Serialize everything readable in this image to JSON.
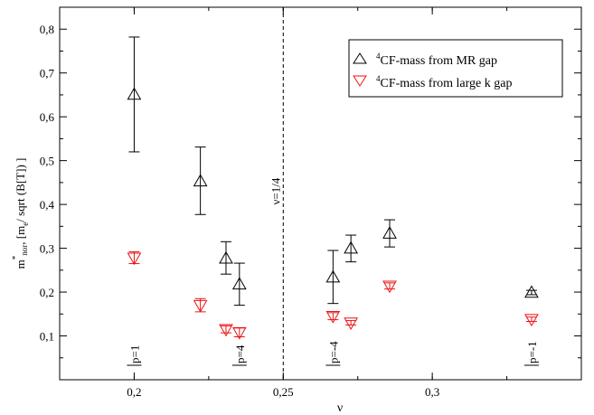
{
  "chart_data": {
    "type": "scatter",
    "title": "",
    "xlabel": "ν",
    "ylabel": {
      "m": "m",
      "star": "*",
      "nor": "nor",
      "rest1": ", [m",
      "e": "e",
      "rest2": "/ sqrt (B[T]) ]"
    },
    "xlim": [
      0.175,
      0.35
    ],
    "ylim": [
      0,
      0.85
    ],
    "x_ticks": [
      {
        "value": 0.2,
        "label": "0,2"
      },
      {
        "value": 0.25,
        "label": "0,25"
      },
      {
        "value": 0.3,
        "label": "0,3"
      }
    ],
    "y_ticks": [
      {
        "value": 0.1,
        "label": "0,1"
      },
      {
        "value": 0.2,
        "label": "0,2"
      },
      {
        "value": 0.3,
        "label": "0,3"
      },
      {
        "value": 0.4,
        "label": "0,4"
      },
      {
        "value": 0.5,
        "label": "0,5"
      },
      {
        "value": 0.6,
        "label": "0,6"
      },
      {
        "value": 0.7,
        "label": "0,7"
      },
      {
        "value": 0.8,
        "label": "0,8"
      }
    ],
    "legend_position": "top-right",
    "series": [
      {
        "name": "CF-mass from MR gap",
        "name_sup": "4",
        "color": "#000000",
        "marker": "triangle-up",
        "points": [
          {
            "x": 0.2,
            "y": 0.651,
            "err_low": 0.52,
            "err_high": 0.782
          },
          {
            "x": 0.2222,
            "y": 0.453,
            "err_low": 0.377,
            "err_high": 0.531
          },
          {
            "x": 0.2308,
            "y": 0.277,
            "err_low": 0.241,
            "err_high": 0.315
          },
          {
            "x": 0.2353,
            "y": 0.218,
            "err_low": 0.17,
            "err_high": 0.266
          },
          {
            "x": 0.2667,
            "y": 0.234,
            "err_low": 0.174,
            "err_high": 0.295
          },
          {
            "x": 0.2727,
            "y": 0.3,
            "err_low": 0.269,
            "err_high": 0.33
          },
          {
            "x": 0.2857,
            "y": 0.334,
            "err_low": 0.303,
            "err_high": 0.365
          },
          {
            "x": 0.3333,
            "y": 0.199,
            "err_low": 0.194,
            "err_high": 0.204
          }
        ]
      },
      {
        "name": "CF-mass from large k gap",
        "name_sup": "4",
        "color": "#ee1111",
        "marker": "triangle-down",
        "points": [
          {
            "x": 0.2,
            "y": 0.278,
            "err_low": 0.265,
            "err_high": 0.292
          },
          {
            "x": 0.2222,
            "y": 0.17,
            "err_low": 0.155,
            "err_high": 0.185
          },
          {
            "x": 0.2308,
            "y": 0.115,
            "err_low": 0.107,
            "err_high": 0.123
          },
          {
            "x": 0.2353,
            "y": 0.108,
            "err_low": 0.098,
            "err_high": 0.118
          },
          {
            "x": 0.2667,
            "y": 0.145,
            "err_low": 0.137,
            "err_high": 0.153
          },
          {
            "x": 0.2727,
            "y": 0.13,
            "err_low": 0.125,
            "err_high": 0.135
          },
          {
            "x": 0.2857,
            "y": 0.214,
            "err_low": 0.207,
            "err_high": 0.221
          },
          {
            "x": 0.3333,
            "y": 0.138,
            "err_low": 0.133,
            "err_high": 0.143
          }
        ]
      }
    ],
    "reference_line": {
      "x": 0.25,
      "label": "ν=1/4"
    },
    "annotations": [
      {
        "text": "p=1",
        "x": 0.2,
        "y": 0.06
      },
      {
        "text": "p=4",
        "x": 0.2353,
        "y": 0.06
      },
      {
        "text": "p=-4",
        "x": 0.2667,
        "y": 0.06
      },
      {
        "text": "p=-1",
        "x": 0.3333,
        "y": 0.06
      }
    ],
    "annotation_baseline_y": 0.033
  }
}
